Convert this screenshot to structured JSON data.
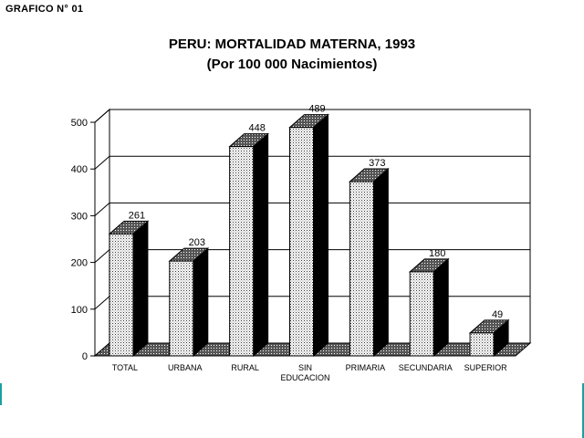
{
  "header": {
    "grafico_label": "GRAFICO N° 01"
  },
  "chart_data": {
    "type": "bar",
    "title": "PERU: MORTALIDAD MATERNA, 1993",
    "subtitle": "(Por 100 000 Nacimientos)",
    "categories": [
      "TOTAL",
      "URBANA",
      "RURAL",
      "SIN EDUCACION",
      "PRIMARIA",
      "SECUNDARIA",
      "SUPERIOR"
    ],
    "category_lines": [
      [
        "TOTAL"
      ],
      [
        "URBANA"
      ],
      [
        "RURAL"
      ],
      [
        "SIN",
        "EDUCACION"
      ],
      [
        "PRIMARIA"
      ],
      [
        "SECUNDARIA"
      ],
      [
        "SUPERIOR"
      ]
    ],
    "values": [
      261,
      203,
      448,
      489,
      373,
      180,
      49
    ],
    "ylim": [
      0,
      500
    ],
    "yticks": [
      0,
      100,
      200,
      300,
      400,
      500
    ],
    "xlabel": "",
    "ylabel": "",
    "grid": true,
    "style": "3d-bar"
  }
}
